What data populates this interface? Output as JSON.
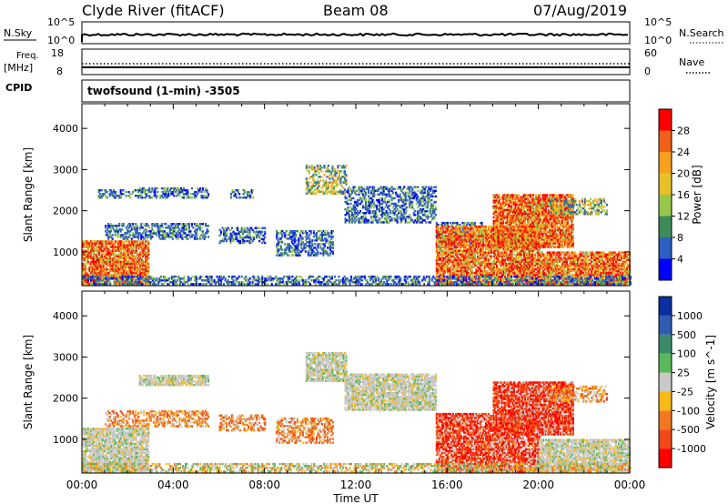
{
  "header": {
    "station": "Clyde River (fitACF)",
    "beam": "Beam 08",
    "date": "07/Aug/2019"
  },
  "top_panels": {
    "nsky_label": "N.Sky",
    "nsky_ticks": [
      "10^5",
      "10^0"
    ],
    "nsearch_label": "N.Search",
    "nsearch_ticks": [
      "10^5",
      "10^0"
    ],
    "freq_label": "Freq.",
    "freq_unit": "[MHz]",
    "freq_ticks": [
      "18",
      "8"
    ],
    "nave_label": "Nave",
    "nave_ticks": [
      "60",
      "0"
    ],
    "cpid_label": "CPID",
    "cpid_text": "twofsound (1-min) -3505"
  },
  "chart_data": [
    {
      "type": "heatmap",
      "name": "power",
      "xlabel": "Time UT",
      "ylabel": "Slant Range [km]",
      "xlim": [
        0,
        24
      ],
      "ylim": [
        180,
        4600
      ],
      "x_ticks": [
        "00:00",
        "04:00",
        "08:00",
        "12:00",
        "16:00",
        "20:00",
        "00:00"
      ],
      "y_ticks": [
        1000,
        2000,
        3000,
        4000
      ],
      "colorbar": {
        "label": "Power [dB]",
        "ticks": [
          "28",
          "24",
          "20",
          "16",
          "12",
          "8",
          "4"
        ],
        "colors": [
          "#0000ff",
          "#2e5fc2",
          "#3c8c5a",
          "#98c84a",
          "#e8c028",
          "#f8a020",
          "#f06018",
          "#ff0000"
        ]
      },
      "regions": [
        {
          "t": [
            0.0,
            2.9
          ],
          "r": [
            200,
            1250
          ],
          "level": "strong"
        },
        {
          "t": [
            0.7,
            2.5
          ],
          "r": [
            2300,
            2500
          ],
          "level": "weak"
        },
        {
          "t": [
            2.5,
            5.5
          ],
          "r": [
            2300,
            2550
          ],
          "level": "weak"
        },
        {
          "t": [
            6.5,
            7.5
          ],
          "r": [
            2300,
            2500
          ],
          "level": "weak"
        },
        {
          "t": [
            1.0,
            5.5
          ],
          "r": [
            1300,
            1700
          ],
          "level": "weak"
        },
        {
          "t": [
            6.0,
            8.0
          ],
          "r": [
            1200,
            1600
          ],
          "level": "weak"
        },
        {
          "t": [
            8.5,
            11.0
          ],
          "r": [
            900,
            1500
          ],
          "level": "weak"
        },
        {
          "t": [
            9.8,
            11.6
          ],
          "r": [
            2400,
            3100
          ],
          "level": "medium"
        },
        {
          "t": [
            11.5,
            15.5
          ],
          "r": [
            1700,
            2600
          ],
          "level": "weak"
        },
        {
          "t": [
            15.5,
            17.5
          ],
          "r": [
            1100,
            1700
          ],
          "level": "weak"
        },
        {
          "t": [
            15.5,
            20.0
          ],
          "r": [
            200,
            1600
          ],
          "level": "strong"
        },
        {
          "t": [
            18.0,
            21.5
          ],
          "r": [
            1100,
            2400
          ],
          "level": "strong"
        },
        {
          "t": [
            20.5,
            23.0
          ],
          "r": [
            1900,
            2300
          ],
          "level": "medium"
        },
        {
          "t": [
            20.0,
            24.0
          ],
          "r": [
            200,
            1000
          ],
          "level": "strong"
        },
        {
          "t": [
            0.0,
            24.0
          ],
          "r": [
            200,
            420
          ],
          "level": "weak"
        }
      ]
    },
    {
      "type": "heatmap",
      "name": "velocity",
      "xlabel": "Time UT",
      "ylabel": "Slant Range [km]",
      "xlim": [
        0,
        24
      ],
      "ylim": [
        180,
        4600
      ],
      "x_ticks": [
        "00:00",
        "04:00",
        "08:00",
        "12:00",
        "16:00",
        "20:00",
        "00:00"
      ],
      "y_ticks": [
        1000,
        2000,
        3000,
        4000
      ],
      "colorbar": {
        "label": "Velocity [m s^-1]",
        "ticks": [
          "1000",
          "500",
          "100",
          "25",
          "-25",
          "-100",
          "-500",
          "-1000"
        ],
        "colors": [
          "#ff0000",
          "#f04818",
          "#f07820",
          "#f8b818",
          "#c8c8c8",
          "#5ab85a",
          "#3a8a6a",
          "#2e5cb0",
          "#0a2fa0"
        ]
      },
      "regions": [
        {
          "t": [
            0.0,
            2.9
          ],
          "r": [
            200,
            1250
          ],
          "level": "ground"
        },
        {
          "t": [
            2.5,
            5.5
          ],
          "r": [
            2300,
            2550
          ],
          "level": "ground"
        },
        {
          "t": [
            1.0,
            5.5
          ],
          "r": [
            1300,
            1700
          ],
          "level": "neg_mid"
        },
        {
          "t": [
            6.0,
            8.0
          ],
          "r": [
            1200,
            1600
          ],
          "level": "neg_mid"
        },
        {
          "t": [
            8.5,
            11.0
          ],
          "r": [
            900,
            1500
          ],
          "level": "neg_mid"
        },
        {
          "t": [
            9.8,
            11.6
          ],
          "r": [
            2400,
            3100
          ],
          "level": "ground"
        },
        {
          "t": [
            11.5,
            15.5
          ],
          "r": [
            1700,
            2600
          ],
          "level": "ground"
        },
        {
          "t": [
            15.5,
            20.0
          ],
          "r": [
            200,
            1600
          ],
          "level": "neg_strong"
        },
        {
          "t": [
            18.0,
            21.5
          ],
          "r": [
            1100,
            2400
          ],
          "level": "neg_strong"
        },
        {
          "t": [
            20.5,
            23.0
          ],
          "r": [
            1900,
            2300
          ],
          "level": "neg_mid"
        },
        {
          "t": [
            20.0,
            24.0
          ],
          "r": [
            200,
            1000
          ],
          "level": "ground"
        },
        {
          "t": [
            0.0,
            24.0
          ],
          "r": [
            200,
            420
          ],
          "level": "neg_weak"
        }
      ]
    }
  ]
}
